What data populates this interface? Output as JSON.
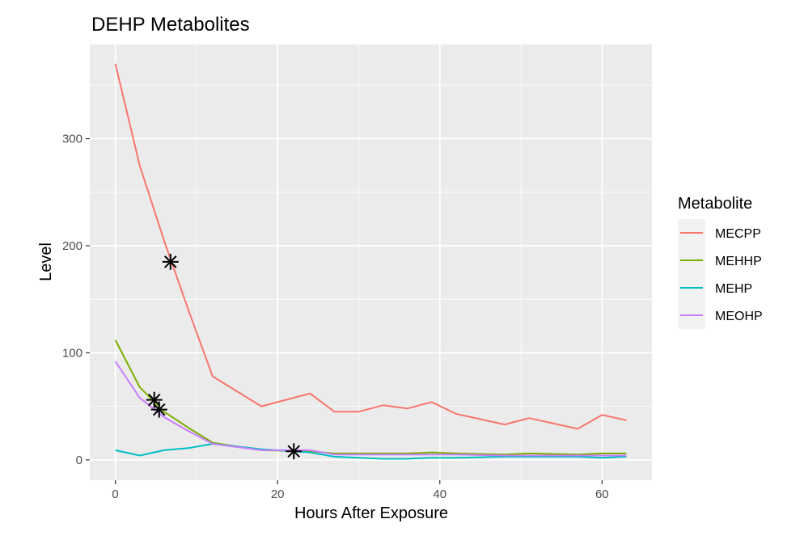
{
  "chart_data": {
    "type": "line",
    "title": "DEHP Metabolites",
    "xlabel": "Hours After Exposure",
    "ylabel": "Level",
    "xlim": [
      -3.15,
      66.15
    ],
    "ylim": [
      -19,
      388
    ],
    "x_ticks": [
      0,
      20,
      40,
      60
    ],
    "y_ticks": [
      0,
      100,
      200,
      300
    ],
    "grid": true,
    "panel_background": "#ebebeb",
    "legend": {
      "title": "Metabolite",
      "position": "right"
    },
    "series": [
      {
        "name": "MECPP",
        "color": "#f8766d",
        "x": [
          0,
          3,
          6,
          9,
          12,
          18,
          24,
          27,
          30,
          33,
          36,
          39,
          42,
          48,
          51,
          57,
          60,
          63
        ],
        "y": [
          370,
          275,
          205,
          140,
          78,
          50,
          62,
          45,
          45,
          51,
          48,
          54,
          43,
          33,
          39,
          29,
          42,
          37
        ]
      },
      {
        "name": "MEHHP",
        "color": "#7cae00",
        "x": [
          0,
          3,
          6,
          9,
          12,
          18,
          24,
          27,
          30,
          33,
          36,
          39,
          42,
          48,
          51,
          57,
          60,
          63
        ],
        "y": [
          112,
          68,
          45,
          30,
          16,
          9,
          8,
          6,
          6,
          6,
          6,
          7,
          6,
          5,
          6,
          5,
          6,
          6
        ]
      },
      {
        "name": "MEHP",
        "color": "#00bfc4",
        "x": [
          0,
          3,
          6,
          9,
          12,
          18,
          24,
          27,
          30,
          33,
          36,
          39,
          42,
          48,
          51,
          57,
          60,
          63
        ],
        "y": [
          9,
          4,
          9,
          11,
          15,
          10,
          7,
          3,
          2,
          1,
          1,
          2,
          2,
          3,
          3,
          3,
          2,
          3
        ]
      },
      {
        "name": "MEOHP",
        "color": "#c77cff",
        "x": [
          0,
          3,
          6,
          9,
          12,
          18,
          24,
          27,
          30,
          33,
          36,
          39,
          42,
          48,
          51,
          57,
          60,
          63
        ],
        "y": [
          92,
          58,
          40,
          27,
          15,
          9,
          9,
          5,
          5,
          5,
          5,
          5,
          5,
          4,
          4,
          4,
          4,
          4
        ]
      }
    ],
    "markers": [
      {
        "x": 6.8,
        "y": 185
      },
      {
        "x": 4.8,
        "y": 56
      },
      {
        "x": 5.4,
        "y": 47
      },
      {
        "x": 22.0,
        "y": 8
      }
    ]
  }
}
